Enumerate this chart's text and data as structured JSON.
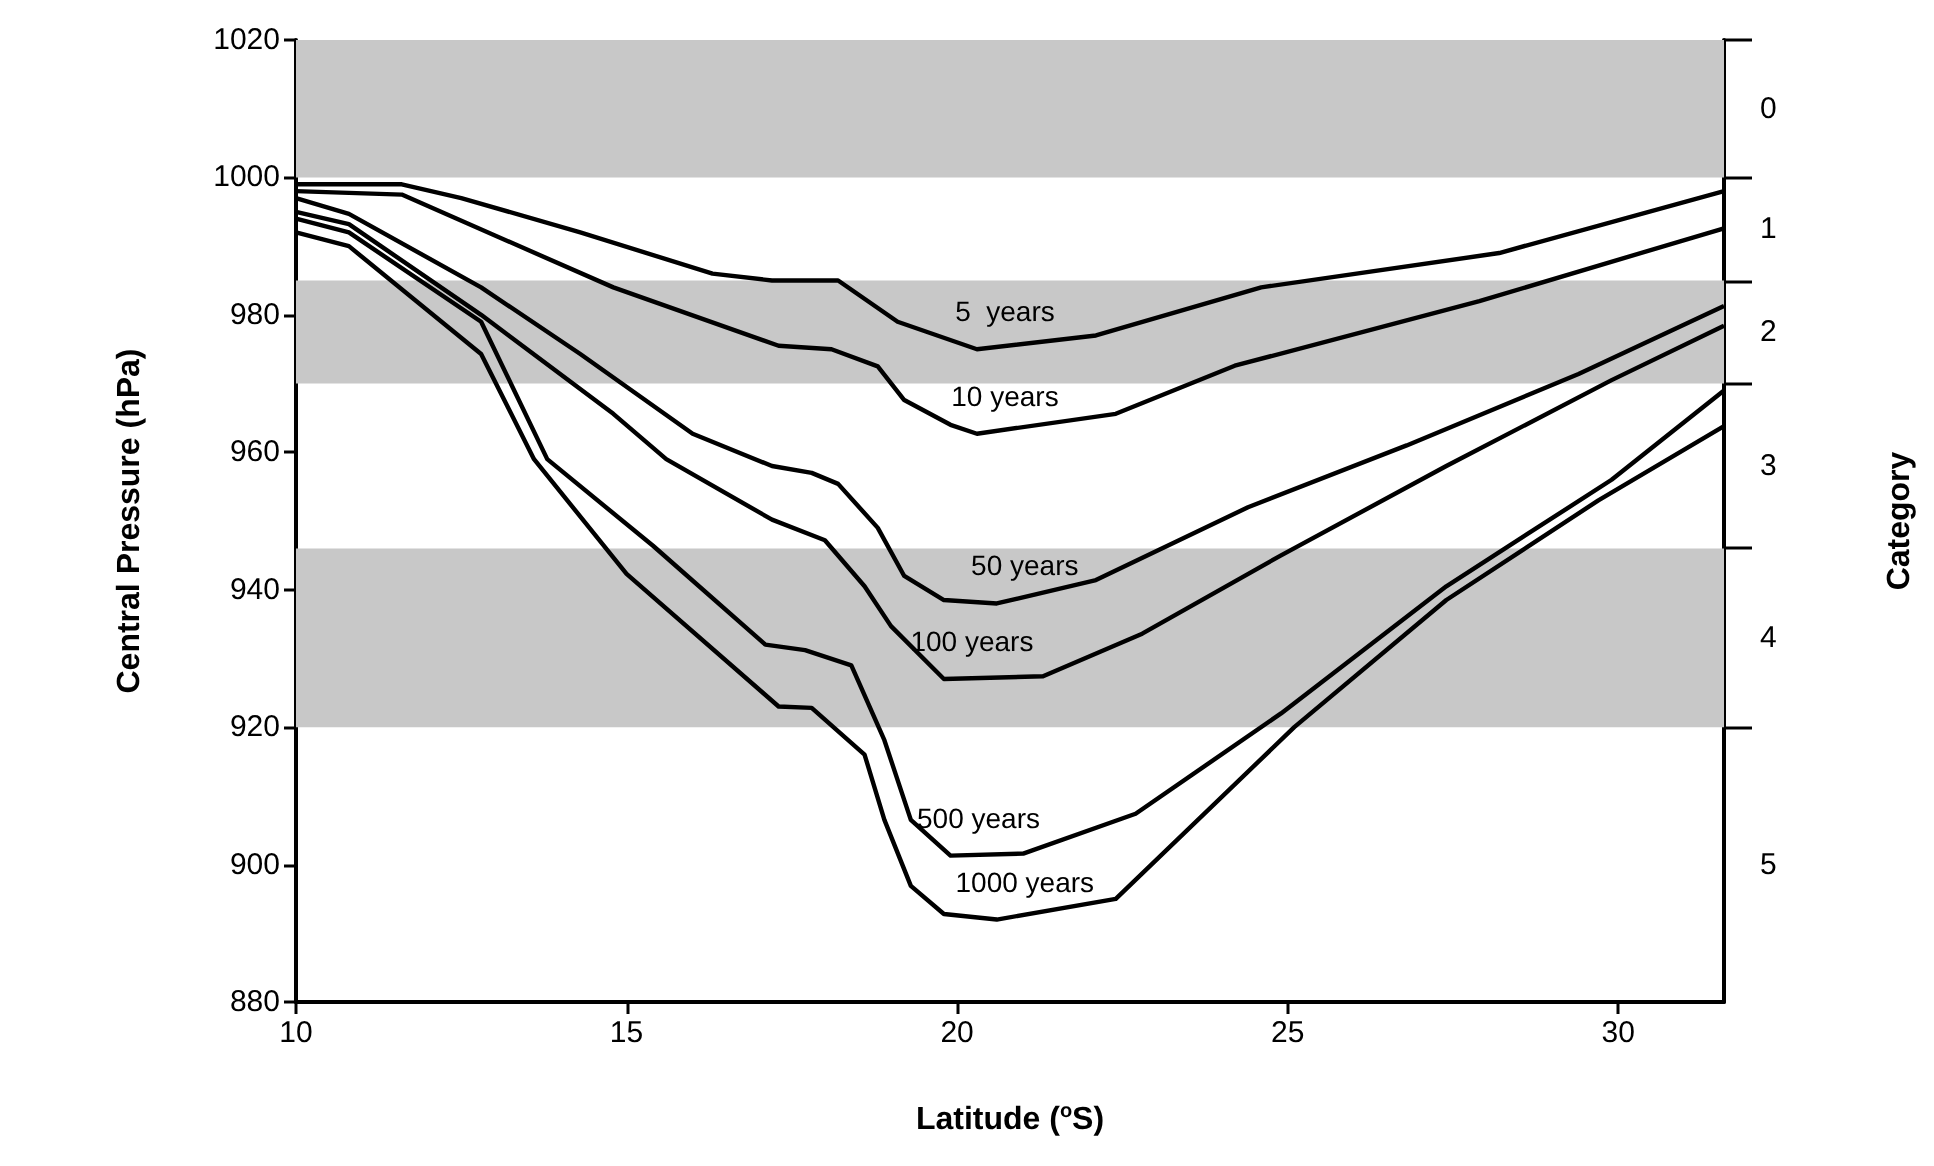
{
  "chart_data": {
    "type": "line",
    "xlabel": "Latitude ($^{o}$S)",
    "ylabel": "Central Pressure (hPa)",
    "y2label": "Category",
    "xlim": [
      10,
      31.6
    ],
    "xticks": [
      10,
      15,
      20,
      25,
      30
    ],
    "ylim": [
      880,
      1020
    ],
    "yticks": [
      880,
      900,
      920,
      940,
      960,
      980,
      1000,
      1020
    ],
    "grid": false,
    "legend": false,
    "marker": "none",
    "line_style": "solid",
    "bands": [
      {
        "axis": "y",
        "from": 1000,
        "to": 1020,
        "label": "0",
        "color": "#c8c8c8"
      },
      {
        "axis": "y",
        "from": 970,
        "to": 985,
        "label": "2",
        "color": "#c8c8c8"
      },
      {
        "axis": "y",
        "from": 920,
        "to": 946,
        "label": "4",
        "color": "#c8c8c8"
      }
    ],
    "annotations": [
      "1",
      "3",
      "5"
    ],
    "series": [
      {
        "name": "5  years",
        "color": "#000000",
        "x": [
          10,
          11.6,
          12.5,
          14.3,
          16.3,
          17.2,
          18.2,
          19.1,
          20.3,
          22.1,
          24.6,
          28.2,
          31.6
        ],
        "values": [
          999,
          999,
          997,
          992,
          986,
          985,
          985,
          979,
          975,
          977,
          984,
          989,
          998
        ]
      },
      {
        "name": "10 years",
        "color": "#000000",
        "x": [
          10,
          11.6,
          14.8,
          17.3,
          18.1,
          18.8,
          19.2,
          19.9,
          20.3,
          22.4,
          24.2,
          27.9,
          31.6
        ],
        "values": [
          998,
          997.5,
          984,
          975.5,
          975,
          972.5,
          967.6,
          964,
          962.7,
          965.6,
          972.6,
          982,
          992.6
        ]
      },
      {
        "name": "50 years",
        "color": "#000000",
        "x": [
          10,
          10.8,
          12.8,
          14.3,
          16,
          17.2,
          17.8,
          18.2,
          18.8,
          19.2,
          19.8,
          20.6,
          22.1,
          24.4,
          26.8,
          29.4,
          31.6
        ],
        "values": [
          997,
          994.7,
          984,
          974.3,
          962.7,
          958,
          957,
          955.4,
          949,
          942,
          938.5,
          938,
          941.4,
          952,
          961,
          971.4,
          981.3
        ]
      },
      {
        "name": "100 years",
        "color": "#000000",
        "x": [
          10,
          10.8,
          12.8,
          14.8,
          15.6,
          17.2,
          18,
          18.6,
          19,
          19.8,
          21.3,
          22.8,
          24.9,
          27.4,
          29.9,
          31.6
        ],
        "values": [
          995,
          993.2,
          980,
          965.6,
          959,
          950.2,
          947.2,
          940.5,
          934.7,
          927,
          927.4,
          933.6,
          945,
          958,
          970.5,
          978.4
        ]
      },
      {
        "name": "500 years",
        "color": "#000000",
        "x": [
          10,
          10.8,
          12.8,
          13.8,
          15.4,
          17.1,
          17.7,
          18.4,
          18.9,
          19.3,
          19.9,
          21,
          22.7,
          24.9,
          27.4,
          29.9,
          31.6
        ],
        "values": [
          994,
          992,
          979,
          959,
          946.4,
          932,
          931.2,
          929,
          918.1,
          906.5,
          901.3,
          901.6,
          907.4,
          922,
          940.5,
          956,
          969
        ]
      },
      {
        "name": "1000 years",
        "color": "#000000",
        "x": [
          10,
          10.8,
          12.8,
          13.6,
          15,
          17.3,
          17.8,
          18.6,
          18.9,
          19.3,
          19.8,
          20.6,
          22.4,
          25.1,
          27.4,
          29.7,
          31.6
        ],
        "values": [
          992,
          990,
          974.3,
          959,
          942.3,
          923,
          922.8,
          916,
          906.5,
          896.9,
          892.8,
          892,
          895,
          920,
          938.5,
          953,
          963.8
        ]
      }
    ]
  }
}
